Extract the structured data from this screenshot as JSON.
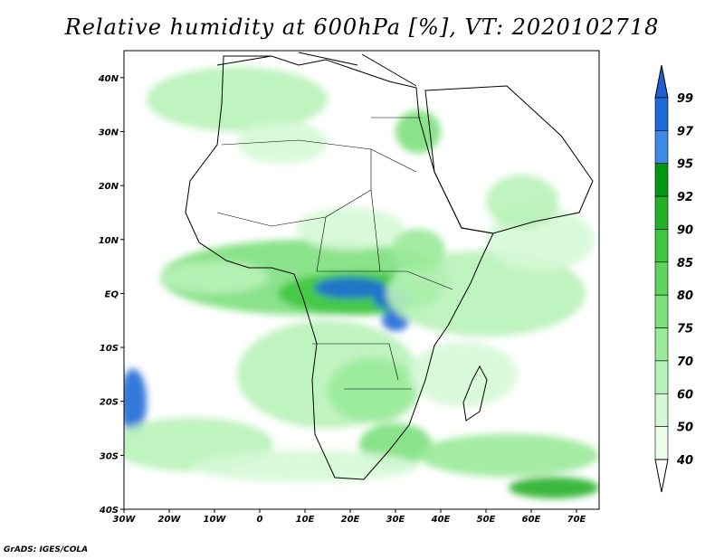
{
  "title": "Relative humidity at 600hPa [%], VT: 2020102718",
  "credit": "GrADS: IGES/COLA",
  "map": {
    "lon_range": [
      -30,
      75
    ],
    "lat_range": [
      -40,
      45
    ],
    "lon_ticks": [
      {
        "value": -30,
        "label": "30W"
      },
      {
        "value": -20,
        "label": "20W"
      },
      {
        "value": -10,
        "label": "10W"
      },
      {
        "value": 0,
        "label": "0"
      },
      {
        "value": 10,
        "label": "10E"
      },
      {
        "value": 20,
        "label": "20E"
      },
      {
        "value": 30,
        "label": "30E"
      },
      {
        "value": 40,
        "label": "40E"
      },
      {
        "value": 50,
        "label": "50E"
      },
      {
        "value": 60,
        "label": "60E"
      },
      {
        "value": 70,
        "label": "70E"
      }
    ],
    "lat_ticks": [
      {
        "value": 40,
        "label": "40N"
      },
      {
        "value": 30,
        "label": "30N"
      },
      {
        "value": 20,
        "label": "20N"
      },
      {
        "value": 10,
        "label": "10N"
      },
      {
        "value": 0,
        "label": "EQ"
      },
      {
        "value": -10,
        "label": "10S"
      },
      {
        "value": -20,
        "label": "20S"
      },
      {
        "value": -30,
        "label": "30S"
      },
      {
        "value": -40,
        "label": "40S"
      }
    ],
    "humidity_patches": [
      {
        "lon": 10,
        "lat": 3,
        "rlon": 32,
        "rlat": 7,
        "level": 75
      },
      {
        "lon": 22,
        "lat": 0,
        "rlon": 18,
        "rlat": 4,
        "level": 85
      },
      {
        "lon": 20,
        "lat": 1,
        "rlon": 8,
        "rlat": 2,
        "level": 97
      },
      {
        "lon": 29,
        "lat": -1,
        "rlon": 4,
        "rlat": 2,
        "level": 97
      },
      {
        "lon": 30,
        "lat": -5,
        "rlon": 3,
        "rlat": 2,
        "level": 97
      },
      {
        "lon": 15,
        "lat": -15,
        "rlon": 20,
        "rlat": 10,
        "level": 60
      },
      {
        "lon": 25,
        "lat": -18,
        "rlon": 10,
        "rlat": 6,
        "level": 70
      },
      {
        "lon": 30,
        "lat": -28,
        "rlon": 8,
        "rlat": 4,
        "level": 75
      },
      {
        "lon": -28,
        "lat": -20,
        "rlon": 3,
        "rlat": 6,
        "level": 97
      },
      {
        "lon": -15,
        "lat": -28,
        "rlon": 18,
        "rlat": 5,
        "level": 60
      },
      {
        "lon": 10,
        "lat": -32,
        "rlon": 25,
        "rlat": 3,
        "level": 50
      },
      {
        "lon": 55,
        "lat": -30,
        "rlon": 20,
        "rlat": 4,
        "level": 70
      },
      {
        "lon": 65,
        "lat": -36,
        "rlon": 10,
        "rlat": 2,
        "level": 90
      },
      {
        "lon": 50,
        "lat": 0,
        "rlon": 22,
        "rlat": 8,
        "level": 60
      },
      {
        "lon": 62,
        "lat": 10,
        "rlon": 12,
        "rlat": 6,
        "level": 50
      },
      {
        "lon": -5,
        "lat": 36,
        "rlon": 20,
        "rlat": 6,
        "level": 60
      },
      {
        "lon": 5,
        "lat": 28,
        "rlon": 10,
        "rlat": 4,
        "level": 50
      },
      {
        "lon": 35,
        "lat": 30,
        "rlon": 5,
        "rlat": 4,
        "level": 75
      },
      {
        "lon": 20,
        "lat": 12,
        "rlon": 12,
        "rlat": 4,
        "level": 50
      },
      {
        "lon": 35,
        "lat": 8,
        "rlon": 6,
        "rlat": 4,
        "level": 70
      },
      {
        "lon": 58,
        "lat": 17,
        "rlon": 8,
        "rlat": 5,
        "level": 60
      },
      {
        "lon": 45,
        "lat": -15,
        "rlon": 12,
        "rlat": 6,
        "level": 50
      },
      {
        "lon": -10,
        "lat": 3,
        "rlon": 12,
        "rlat": 3,
        "level": 60
      }
    ]
  },
  "colorbar": {
    "levels": [
      99,
      97,
      95,
      92,
      90,
      85,
      80,
      75,
      70,
      60,
      50,
      40
    ],
    "colors": [
      "#1d6ad6",
      "#3d8ae6",
      "#009612",
      "#23b028",
      "#3fc63f",
      "#5ed35e",
      "#7de07d",
      "#9aea9a",
      "#b8f2b8",
      "#d6f8d6",
      "#eafcea"
    ],
    "top_arrow_color": "#1f5fd0",
    "bottom_arrow_color": "#ffffff"
  }
}
